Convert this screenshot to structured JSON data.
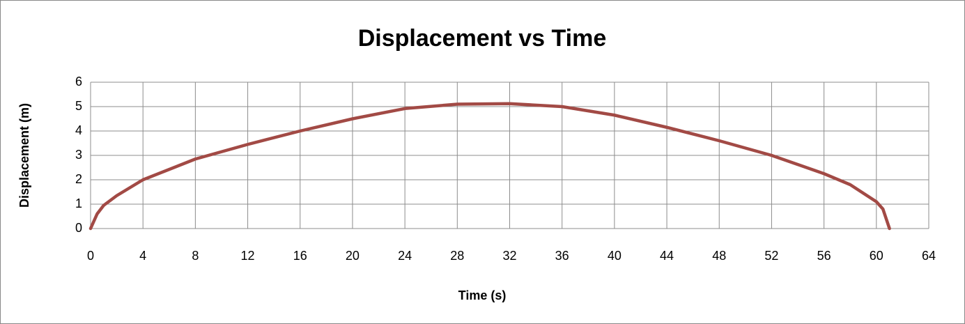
{
  "chart_data": {
    "type": "line",
    "title": "Displacement vs Time",
    "x_label": "Time (s)",
    "y_label": "Displacement (m)",
    "x": [
      0,
      0.5,
      1,
      2,
      4,
      8,
      12,
      16,
      20,
      24,
      28,
      32,
      36,
      40,
      44,
      48,
      52,
      56,
      58,
      60,
      60.5,
      61
    ],
    "series": [
      {
        "name": "Displacement",
        "color": "#a24a45",
        "values": [
          0,
          0.6,
          0.95,
          1.35,
          2.0,
          2.85,
          3.45,
          4.0,
          4.5,
          4.92,
          5.1,
          5.12,
          5.0,
          4.65,
          4.15,
          3.6,
          3.0,
          2.25,
          1.8,
          1.1,
          0.8,
          0
        ]
      }
    ],
    "xlim": [
      0,
      64
    ],
    "xticks": [
      0,
      4,
      8,
      12,
      16,
      20,
      24,
      28,
      32,
      36,
      40,
      44,
      48,
      52,
      56,
      60,
      64
    ],
    "ylim": [
      0,
      6
    ],
    "yticks": [
      0,
      1,
      2,
      3,
      4,
      5,
      6
    ],
    "grid": true
  }
}
